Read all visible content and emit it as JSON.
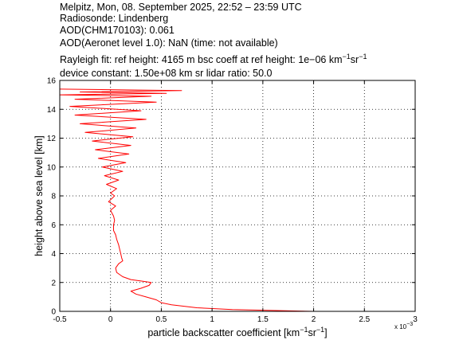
{
  "header": {
    "line1": "Melpitz, Mon, 08. September 2025, 22:52 – 23:59 UTC",
    "line2": "Radiosonde: Lindenberg",
    "line3": "AOD(CHM170103): 0.061",
    "line4": "AOD(Aeronet level 1.0): NaN   (time: not available)",
    "line5_a": "Rayleigh fit:     ref height: 4165 m     bsc coeff at ref height: 1e−06 km",
    "line5_sup1": "−1",
    "line5_b": "sr",
    "line5_sup2": "−1",
    "line6": "device constant: 1.50e+08 km sr     lidar ratio: 50.0"
  },
  "chart_data": {
    "type": "line",
    "xlabel_main": "particle backscatter coefficient [km",
    "xlabel_sup1": "−1",
    "xlabel_mid": "sr",
    "xlabel_sup2": "−1",
    "xlabel_end": "]",
    "ylabel": "height above sea level [km]",
    "x_multiplier_label": "x 10",
    "x_multiplier_exp": "−3",
    "xlim": [
      -0.5,
      3
    ],
    "ylim": [
      0,
      16
    ],
    "x_ticks": [
      "-0.5",
      "0",
      "0.5",
      "1",
      "1.5",
      "2",
      "2.5",
      "3"
    ],
    "y_ticks": [
      "0",
      "2",
      "4",
      "6",
      "8",
      "10",
      "12",
      "14",
      "16"
    ],
    "grid": true,
    "line_color": "#ff0000",
    "series": [
      {
        "x": [
          2.0,
          1.2,
          0.85,
          0.6,
          0.5,
          0.45,
          0.35,
          0.25,
          0.2,
          0.3,
          0.38,
          0.4,
          0.3,
          0.2,
          0.12,
          0.06,
          0.05,
          0.08,
          0.12,
          0.11,
          0.1,
          0.09,
          0.08,
          0.06,
          0.05,
          0.03,
          0.03,
          0.04,
          0.03,
          0.0,
          0.05,
          -0.02,
          0.04,
          0.0,
          0.06,
          -0.04,
          0.08,
          -0.06,
          0.12,
          -0.08,
          0.15,
          -0.12,
          0.18,
          -0.15,
          0.2,
          -0.18,
          0.22,
          -0.25,
          0.25,
          -0.3,
          0.35,
          -0.35,
          0.3,
          -0.4,
          0.45,
          -0.35,
          0.4,
          -0.5,
          0.55,
          -0.3,
          0.7,
          -0.5
        ],
        "y": [
          0.0,
          0.12,
          0.25,
          0.45,
          0.6,
          0.8,
          1.0,
          1.2,
          1.4,
          1.6,
          1.8,
          2.0,
          2.1,
          2.2,
          2.4,
          2.7,
          3.0,
          3.3,
          3.5,
          3.7,
          4.0,
          4.3,
          4.6,
          5.0,
          5.3,
          5.6,
          6.0,
          6.3,
          6.6,
          7.0,
          7.3,
          7.6,
          8.0,
          8.2,
          8.5,
          8.8,
          9.1,
          9.4,
          9.7,
          10.0,
          10.3,
          10.6,
          10.9,
          11.2,
          11.5,
          11.8,
          12.1,
          12.4,
          12.7,
          13.0,
          13.3,
          13.6,
          13.9,
          14.2,
          14.5,
          14.7,
          14.9,
          15.0,
          15.1,
          15.2,
          15.3,
          15.4
        ]
      }
    ]
  }
}
